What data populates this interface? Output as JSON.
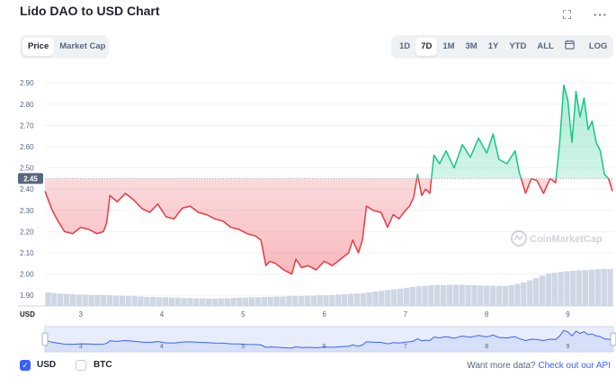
{
  "header": {
    "title": "Lido DAO to USD Chart",
    "fullscreen_icon": "expand-icon",
    "menu_icon": "more-horizontal-icon"
  },
  "chart_type_tabs": [
    {
      "label": "Price",
      "active": true
    },
    {
      "label": "Market Cap",
      "active": false
    }
  ],
  "range_tabs": [
    {
      "label": "1D",
      "active": false
    },
    {
      "label": "7D",
      "active": true
    },
    {
      "label": "1M",
      "active": false
    },
    {
      "label": "3M",
      "active": false
    },
    {
      "label": "1Y",
      "active": false
    },
    {
      "label": "YTD",
      "active": false
    },
    {
      "label": "ALL",
      "active": false
    }
  ],
  "calendar_icon": "calendar-icon",
  "log_label": "LOG",
  "watermark": "CoinMarketCap",
  "colors": {
    "up": "#16c784",
    "down": "#ea3943",
    "reference": "#a6b0c3",
    "navigator_line": "#3861fb",
    "volume": "#cfd6e4"
  },
  "chart_data": {
    "type": "line",
    "title": "Lido DAO to USD Chart",
    "currency_label": "USD",
    "reference_value": 2.45,
    "reference_label": "2.45",
    "ylim": [
      1.85,
      2.96
    ],
    "y_ticks": [
      1.9,
      2.0,
      2.1,
      2.2,
      2.3,
      2.4,
      2.5,
      2.6,
      2.7,
      2.8,
      2.9
    ],
    "y_tick_labels": [
      "1.90",
      "2.00",
      "2.10",
      "2.20",
      "2.30",
      "2.40",
      "2.50",
      "2.60",
      "2.70",
      "2.80",
      "2.90"
    ],
    "xlim": [
      2.56,
      9.56
    ],
    "x_ticks": [
      3,
      4,
      5,
      6,
      7,
      8,
      9
    ],
    "x_tick_labels": [
      "3",
      "4",
      "5",
      "6",
      "7",
      "8",
      "9"
    ],
    "grid": true,
    "x": [
      2.56,
      2.65,
      2.72,
      2.8,
      2.9,
      3.0,
      3.1,
      3.2,
      3.28,
      3.32,
      3.36,
      3.45,
      3.55,
      3.65,
      3.75,
      3.85,
      3.95,
      4.05,
      4.15,
      4.25,
      4.35,
      4.45,
      4.55,
      4.65,
      4.75,
      4.85,
      4.95,
      5.05,
      5.15,
      5.22,
      5.28,
      5.33,
      5.4,
      5.5,
      5.6,
      5.65,
      5.72,
      5.8,
      5.9,
      6.0,
      6.1,
      6.2,
      6.3,
      6.35,
      6.42,
      6.47,
      6.52,
      6.6,
      6.7,
      6.78,
      6.85,
      6.92,
      7.0,
      7.05,
      7.1,
      7.15,
      7.2,
      7.25,
      7.3,
      7.35,
      7.42,
      7.5,
      7.6,
      7.7,
      7.8,
      7.9,
      8.0,
      8.08,
      8.15,
      8.25,
      8.35,
      8.4,
      8.48,
      8.55,
      8.62,
      8.7,
      8.78,
      8.85,
      8.9,
      8.95,
      9.0,
      9.05,
      9.1,
      9.15,
      9.2,
      9.25,
      9.3,
      9.35,
      9.4,
      9.45,
      9.5,
      9.55
    ],
    "values": [
      2.39,
      2.3,
      2.25,
      2.2,
      2.19,
      2.22,
      2.21,
      2.19,
      2.2,
      2.24,
      2.37,
      2.34,
      2.38,
      2.35,
      2.31,
      2.29,
      2.33,
      2.27,
      2.26,
      2.31,
      2.32,
      2.29,
      2.28,
      2.26,
      2.25,
      2.22,
      2.21,
      2.19,
      2.18,
      2.16,
      2.04,
      2.06,
      2.05,
      2.02,
      2.0,
      2.07,
      2.03,
      2.04,
      2.02,
      2.06,
      2.04,
      2.07,
      2.1,
      2.16,
      2.1,
      2.16,
      2.32,
      2.3,
      2.29,
      2.22,
      2.28,
      2.26,
      2.3,
      2.32,
      2.36,
      2.47,
      2.37,
      2.4,
      2.38,
      2.56,
      2.52,
      2.58,
      2.5,
      2.61,
      2.55,
      2.64,
      2.57,
      2.66,
      2.54,
      2.52,
      2.58,
      2.48,
      2.38,
      2.45,
      2.44,
      2.38,
      2.45,
      2.43,
      2.62,
      2.89,
      2.82,
      2.62,
      2.86,
      2.74,
      2.83,
      2.68,
      2.72,
      2.62,
      2.58,
      2.47,
      2.45,
      2.39
    ],
    "volume": [
      0.36,
      0.34,
      0.32,
      0.32,
      0.31,
      0.3,
      0.3,
      0.29,
      0.29,
      0.29,
      0.28,
      0.27,
      0.27,
      0.26,
      0.26,
      0.25,
      0.24,
      0.24,
      0.23,
      0.23,
      0.22,
      0.22,
      0.21,
      0.21,
      0.2,
      0.2,
      0.19,
      0.19,
      0.2,
      0.2,
      0.21,
      0.22,
      0.22,
      0.23,
      0.23,
      0.24,
      0.24,
      0.25,
      0.25,
      0.26,
      0.26,
      0.26,
      0.27,
      0.27,
      0.28,
      0.28,
      0.29,
      0.3,
      0.31,
      0.32,
      0.33,
      0.34,
      0.36,
      0.38,
      0.4,
      0.42,
      0.44,
      0.46,
      0.48,
      0.5,
      0.52,
      0.53,
      0.54,
      0.55,
      0.55,
      0.56,
      0.56,
      0.56,
      0.55,
      0.55,
      0.54,
      0.54,
      0.53,
      0.53,
      0.53,
      0.55,
      0.58,
      0.62,
      0.68,
      0.74,
      0.8,
      0.86,
      0.88,
      0.9,
      0.92,
      0.93,
      0.94,
      0.95,
      0.96,
      0.97,
      0.98,
      0.98
    ]
  },
  "footer": {
    "usd_label": "USD",
    "usd_checked": true,
    "btc_label": "BTC",
    "btc_checked": false,
    "more_text": "Want more data?",
    "more_link": "Check out our API"
  }
}
